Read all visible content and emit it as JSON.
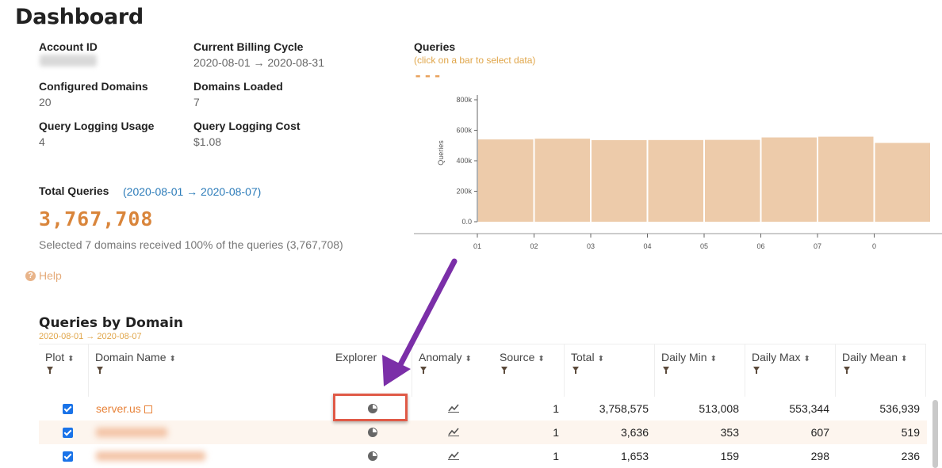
{
  "page_title": "Dashboard",
  "stats": {
    "account_id_label": "Account ID",
    "billing_label": "Current Billing Cycle",
    "billing_value": "2020-08-01 → 2020-08-31",
    "configured_label": "Configured Domains",
    "configured_value": "20",
    "loaded_label": "Domains Loaded",
    "loaded_value": "7",
    "usage_label": "Query Logging Usage",
    "usage_value": "4",
    "cost_label": "Query Logging Cost",
    "cost_value": "$1.08"
  },
  "total": {
    "label": "Total Queries",
    "range": "(2020-08-01 → 2020-08-07)",
    "value": "3,767,708",
    "note": "Selected 7 domains received 100% of the queries (3,767,708)"
  },
  "help_label": "Help",
  "chart_header": {
    "title": "Queries",
    "subtitle": "(click on a bar to select data)",
    "dash": "---"
  },
  "chart_data": {
    "type": "bar",
    "ylabel": "Queries",
    "categories": [
      "01",
      "02",
      "03",
      "04",
      "05",
      "06",
      "07",
      "0"
    ],
    "values": [
      540000,
      545000,
      535000,
      536000,
      537000,
      553000,
      558000,
      517000
    ],
    "ylim": [
      0,
      800000
    ],
    "yticks": [
      "0.0",
      "200k",
      "400k",
      "600k",
      "800k"
    ],
    "color": "#edcbaa"
  },
  "section": {
    "title": "Queries by Domain",
    "subtitle": "2020-08-01 → 2020-08-07"
  },
  "columns": [
    "Plot",
    "Domain Name",
    "Explorer",
    "Anomaly",
    "Source",
    "Total",
    "Daily Min",
    "Daily Max",
    "Daily Mean"
  ],
  "rows": [
    {
      "domain": "server.us",
      "source": "1",
      "total": "3,758,575",
      "min": "513,008",
      "max": "553,344",
      "mean": "536,939"
    },
    {
      "domain": "",
      "source": "1",
      "total": "3,636",
      "min": "353",
      "max": "607",
      "mean": "519"
    },
    {
      "domain": "",
      "source": "1",
      "total": "1,653",
      "min": "159",
      "max": "298",
      "mean": "236"
    }
  ],
  "colors": {
    "accent": "#d9853b",
    "link": "#2b7bb9",
    "highlight": "#e05a47",
    "arrow": "#7b2fa8"
  }
}
